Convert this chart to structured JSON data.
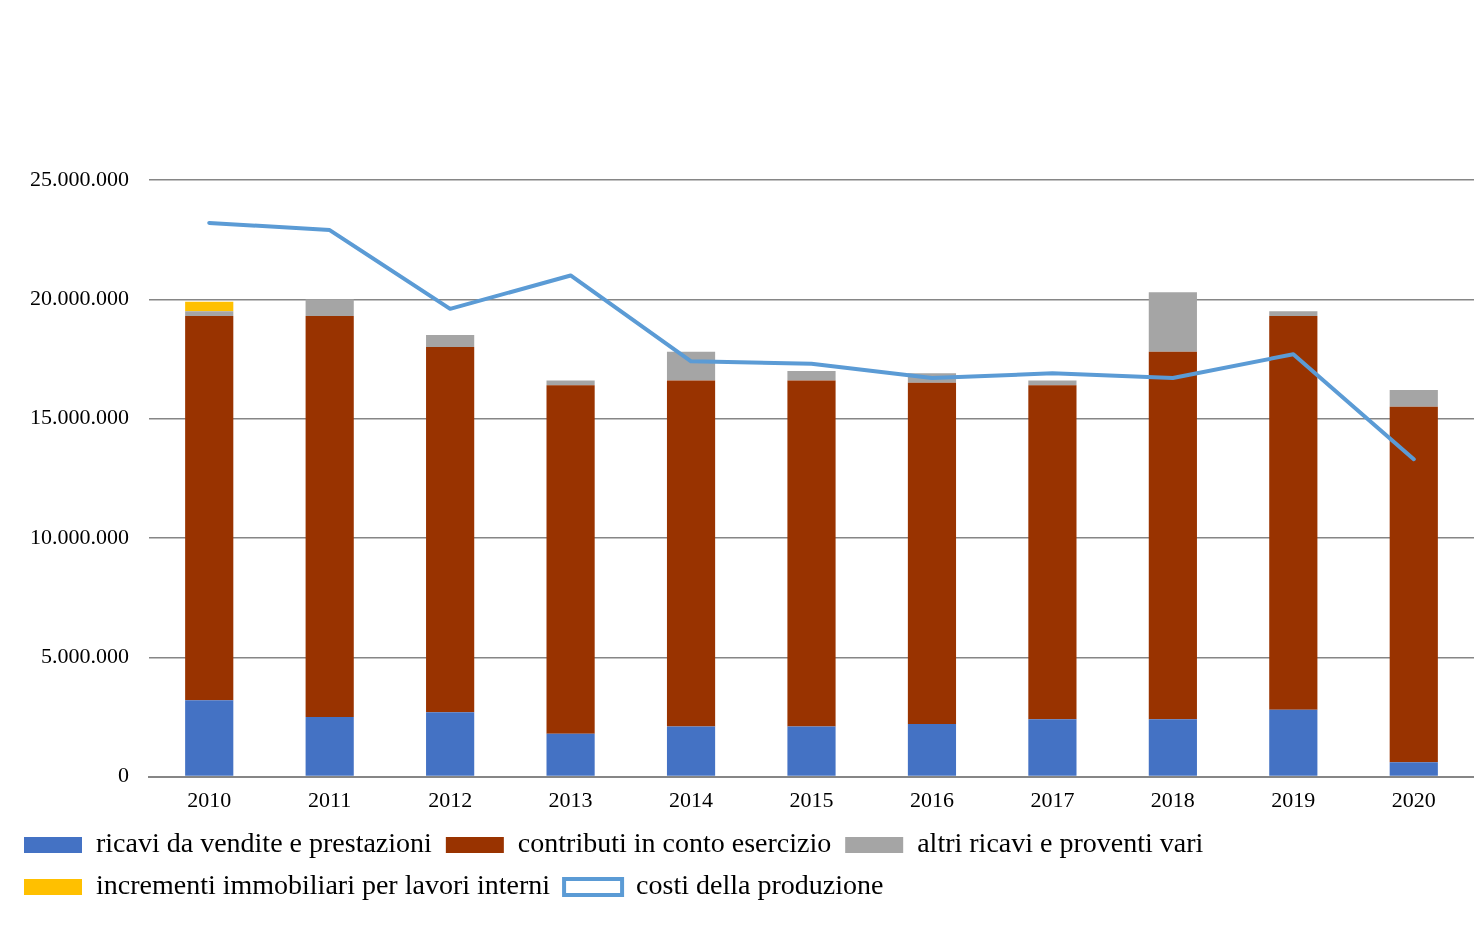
{
  "chart_data": {
    "type": "bar",
    "stacked": true,
    "categories": [
      "2010",
      "2011",
      "2012",
      "2013",
      "2014",
      "2015",
      "2016",
      "2017",
      "2018",
      "2019",
      "2020"
    ],
    "series": [
      {
        "name": "ricavi da vendite e prestazioni",
        "color": "#4472c4",
        "values": [
          3200000,
          2500000,
          2700000,
          1800000,
          2100000,
          2100000,
          2200000,
          2400000,
          2400000,
          2800000,
          600000
        ]
      },
      {
        "name": "contributi in conto esercizio",
        "color": "#993300",
        "values": [
          16100000,
          16800000,
          15300000,
          14600000,
          14500000,
          14500000,
          14300000,
          14000000,
          15400000,
          16500000,
          14900000
        ]
      },
      {
        "name": "altri ricavi e proventi vari",
        "color": "#a5a5a5",
        "values": [
          200000,
          700000,
          500000,
          200000,
          1200000,
          400000,
          400000,
          200000,
          2500000,
          200000,
          700000
        ]
      },
      {
        "name": "incrementi immobiliari per lavori interni",
        "color": "#ffc000",
        "values": [
          400000,
          0,
          0,
          0,
          0,
          0,
          0,
          0,
          0,
          0,
          0
        ]
      },
      {
        "name": "costi della produzione",
        "type": "line",
        "color": "#5b9bd5",
        "values": [
          23200000,
          22900000,
          19600000,
          21000000,
          17400000,
          17300000,
          16700000,
          16900000,
          16700000,
          17700000,
          13300000
        ]
      }
    ],
    "ylim": [
      0,
      25000000
    ],
    "yticks": [
      {
        "value": 0,
        "label": "0"
      },
      {
        "value": 5000000,
        "label": "5.000.000"
      },
      {
        "value": 10000000,
        "label": "10.000.000"
      },
      {
        "value": 15000000,
        "label": "15.000.000"
      },
      {
        "value": 20000000,
        "label": "20.000.000"
      },
      {
        "value": 25000000,
        "label": "25.000.000"
      }
    ],
    "grid": "y",
    "legend": "bottom",
    "marker": "none",
    "line_style": "solid"
  }
}
